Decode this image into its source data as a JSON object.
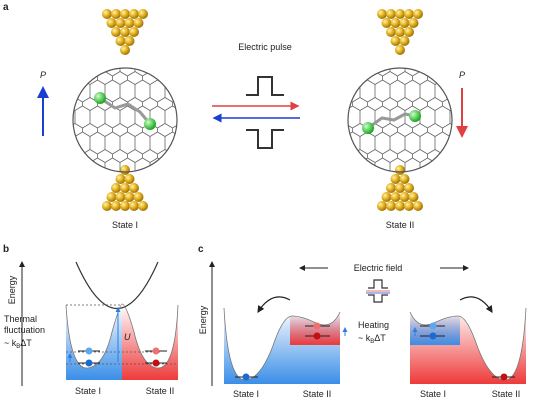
{
  "panel_a": {
    "label": "a",
    "pulse_label": "Electric pulse",
    "left_p": "P",
    "right_p": "P",
    "left_state": "State I",
    "right_state": "State II"
  },
  "panel_b": {
    "label": "b",
    "axis": "Energy",
    "thermal": [
      "Thermal",
      "fluctuation"
    ],
    "formula": {
      "main": "~ k",
      "sub": "B",
      "tail": "ΔT"
    },
    "barrier": "U",
    "left_state": "State I",
    "right_state": "State II"
  },
  "panel_c": {
    "label": "c",
    "axis": "Energy",
    "field": "Electric field",
    "heating": "Heating",
    "formula": {
      "main": "~ k",
      "sub": "B",
      "tail": "ΔT"
    },
    "states": [
      "State I",
      "State II",
      "State I",
      "State II"
    ]
  }
}
